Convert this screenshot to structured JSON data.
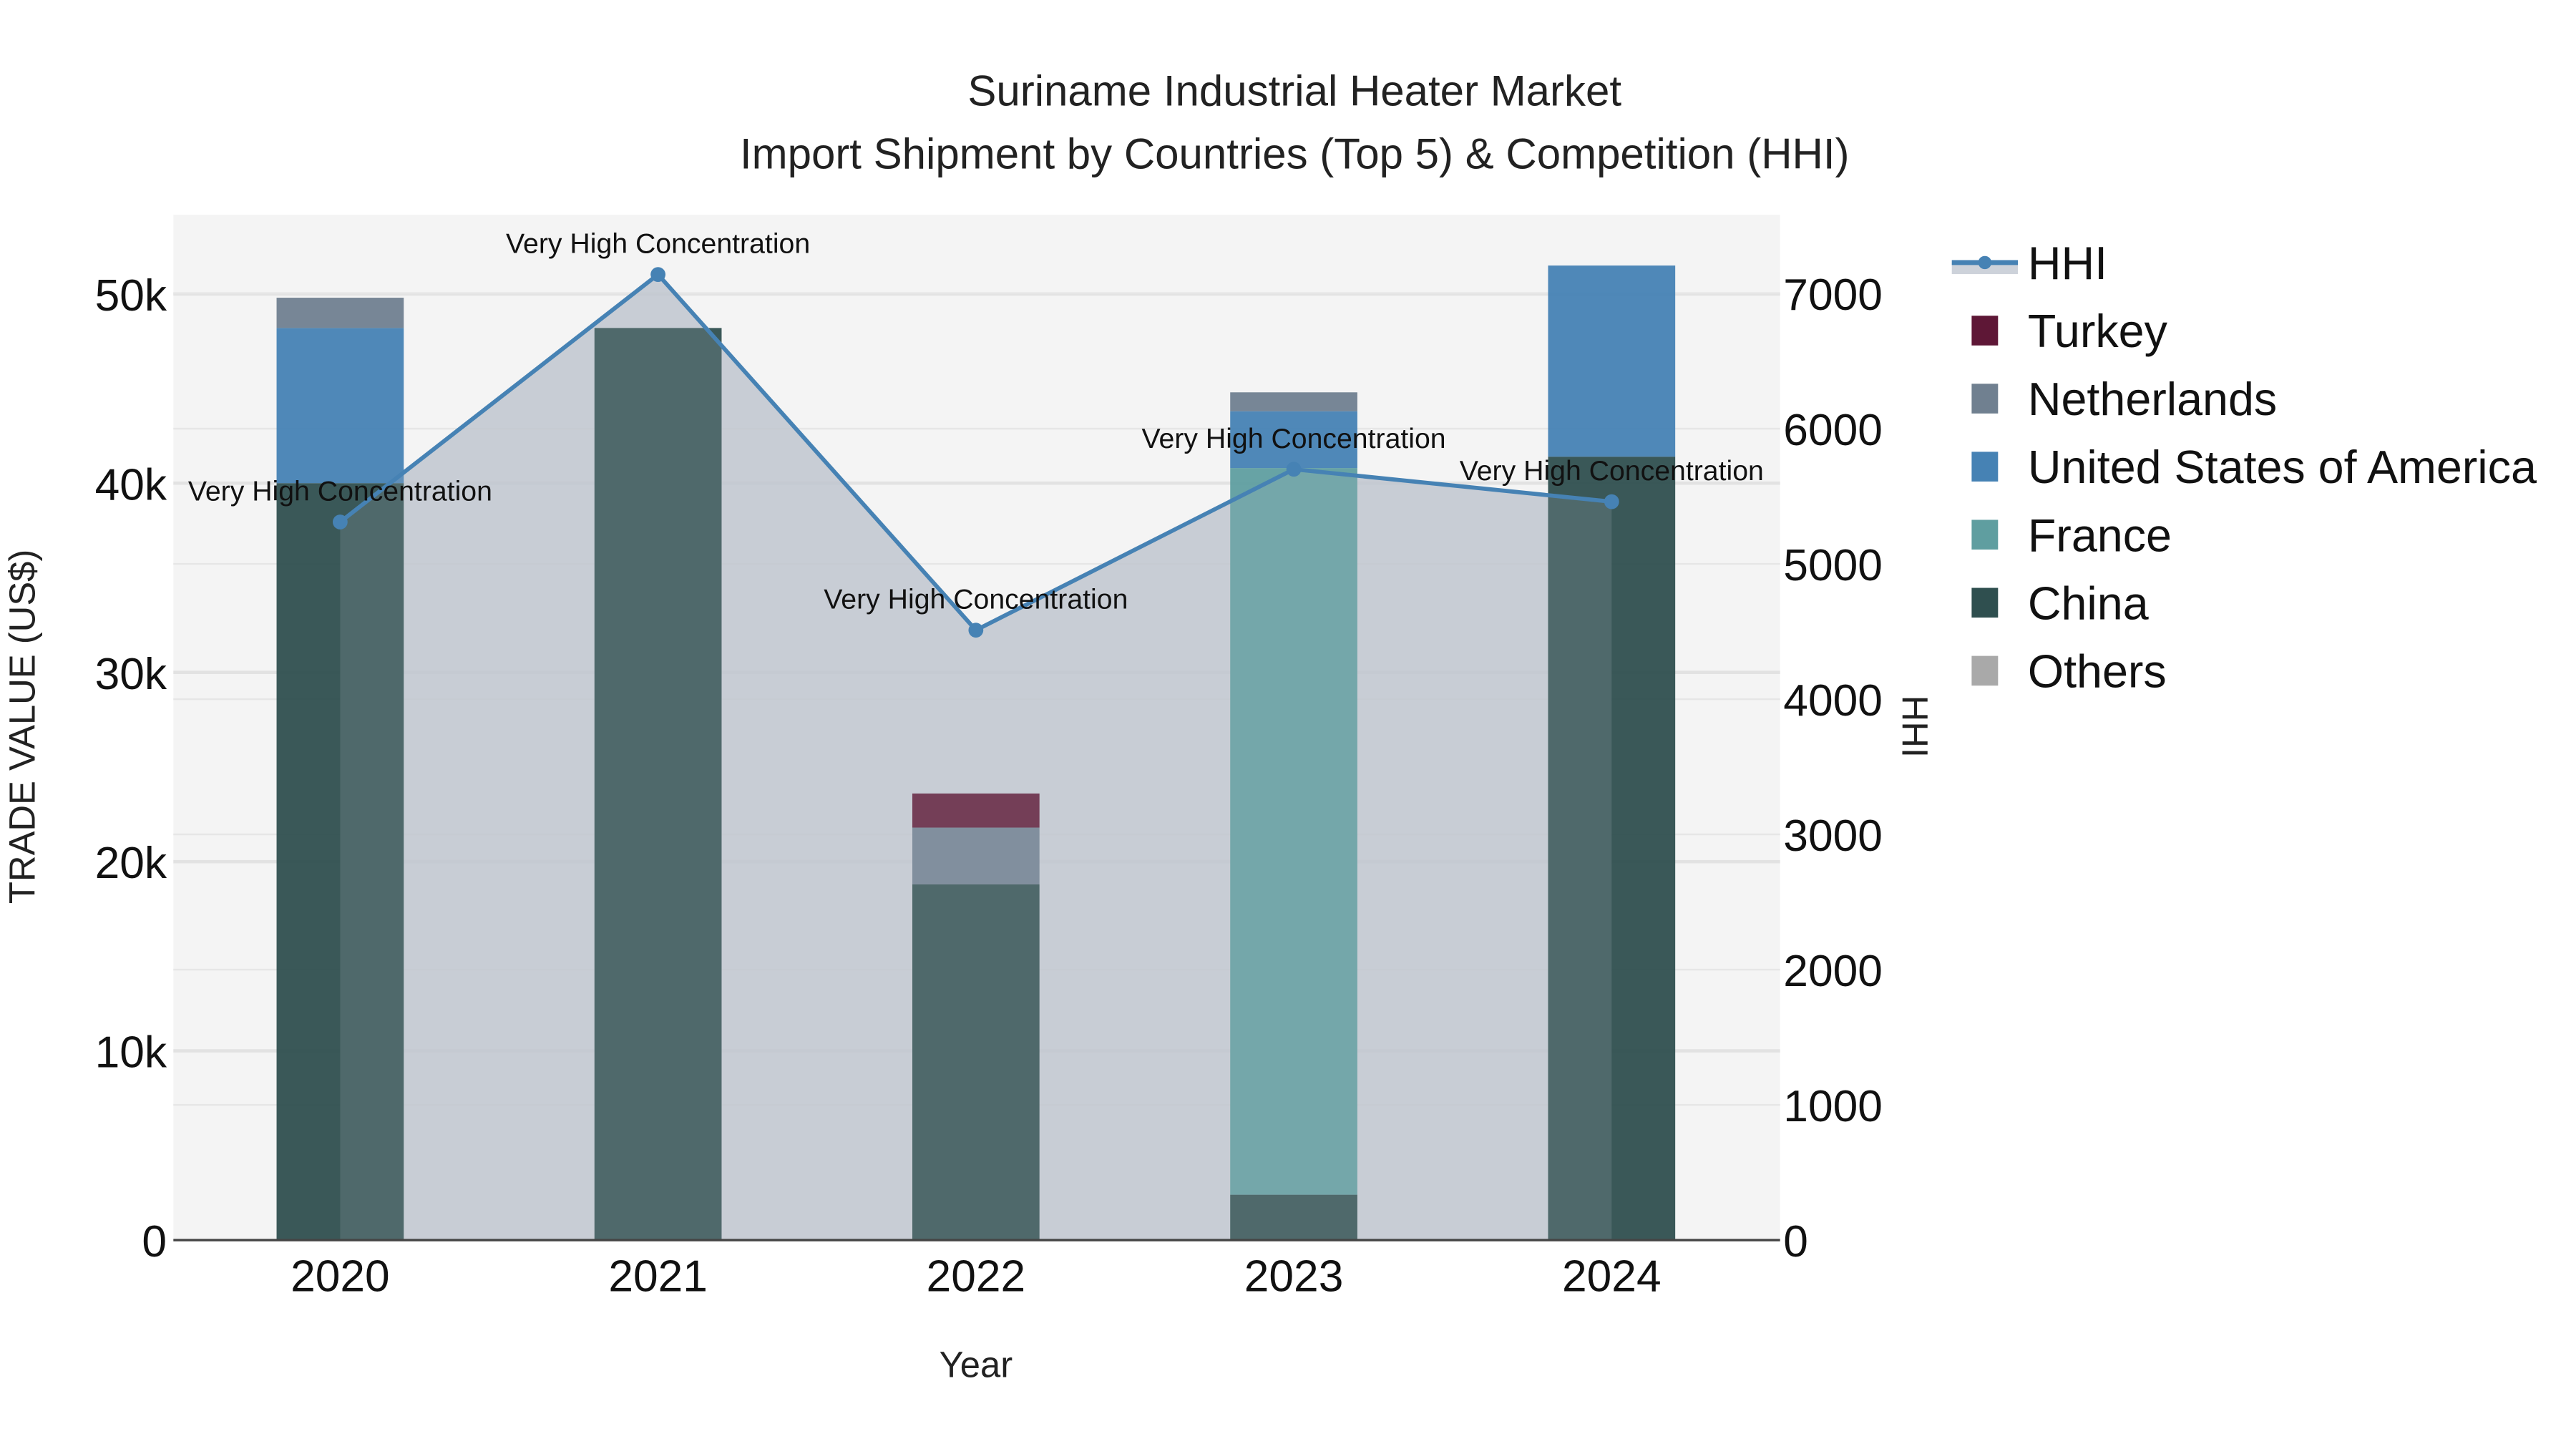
{
  "title": {
    "line1": "Suriname Industrial Heater Market",
    "line2": "Import Shipment by Countries (Top 5) & Competition (HHI)"
  },
  "axes": {
    "x_title": "Year",
    "y_left_title": "TRADE VALUE (US$)",
    "y_right_title": "HHI",
    "y_left_ticks": [
      "0",
      "10k",
      "20k",
      "30k",
      "40k",
      "50k"
    ],
    "y_right_ticks": [
      "0",
      "1000",
      "2000",
      "3000",
      "4000",
      "5000",
      "6000",
      "7000"
    ],
    "x_ticks": [
      "2020",
      "2021",
      "2022",
      "2023",
      "2024"
    ]
  },
  "legend": [
    {
      "name": "HHI",
      "color": "#4682b4",
      "type": "line"
    },
    {
      "name": "Turkey",
      "color": "#5e1736",
      "type": "bar"
    },
    {
      "name": "Netherlands",
      "color": "#708090",
      "type": "bar"
    },
    {
      "name": "United States of America",
      "color": "#4682b4",
      "type": "bar"
    },
    {
      "name": "France",
      "color": "#5f9ea0",
      "type": "bar"
    },
    {
      "name": "China",
      "color": "#2f4f4f",
      "type": "bar"
    },
    {
      "name": "Others",
      "color": "#a9a9a9",
      "type": "bar"
    }
  ],
  "annotation_label": "Very High Concentration",
  "colors": {
    "plot_bg": "#f4f4f4",
    "hhi_fill": "rgba(190,196,206,0.75)",
    "hhi_line": "#4682b4"
  },
  "chart_data": {
    "type": "bar",
    "title": "Suriname Industrial Heater Market - Import Shipment by Countries (Top 5) & Competition (HHI)",
    "xlabel": "Year",
    "ylabel": "TRADE VALUE (US$)",
    "y2label": "HHI",
    "categories": [
      "2020",
      "2021",
      "2022",
      "2023",
      "2024"
    ],
    "ylim": [
      0,
      54000
    ],
    "y2lim": [
      0,
      7580
    ],
    "barmode": "stack",
    "series": [
      {
        "name": "China",
        "color": "#2f4f4f",
        "values": [
          40000,
          48200,
          18800,
          2400,
          41400
        ]
      },
      {
        "name": "France",
        "color": "#5f9ea0",
        "values": [
          0,
          0,
          0,
          38400,
          0
        ]
      },
      {
        "name": "United States of America",
        "color": "#4682b4",
        "values": [
          8200,
          0,
          0,
          3000,
          10100
        ]
      },
      {
        "name": "Netherlands",
        "color": "#708090",
        "values": [
          1600,
          0,
          3000,
          1000,
          0
        ]
      },
      {
        "name": "Turkey",
        "color": "#5e1736",
        "values": [
          0,
          0,
          1800,
          0,
          0
        ]
      },
      {
        "name": "Others",
        "color": "#a9a9a9",
        "values": [
          0,
          0,
          0,
          0,
          0
        ]
      }
    ],
    "line_series": {
      "name": "HHI",
      "axis": "right",
      "color": "#4682b4",
      "values": [
        5310,
        7140,
        4510,
        5700,
        5460
      ],
      "annotations": [
        "Very High Concentration",
        "Very High Concentration",
        "Very High Concentration",
        "Very High Concentration",
        "Very High Concentration"
      ]
    },
    "grid": true,
    "legend_position": "right"
  }
}
